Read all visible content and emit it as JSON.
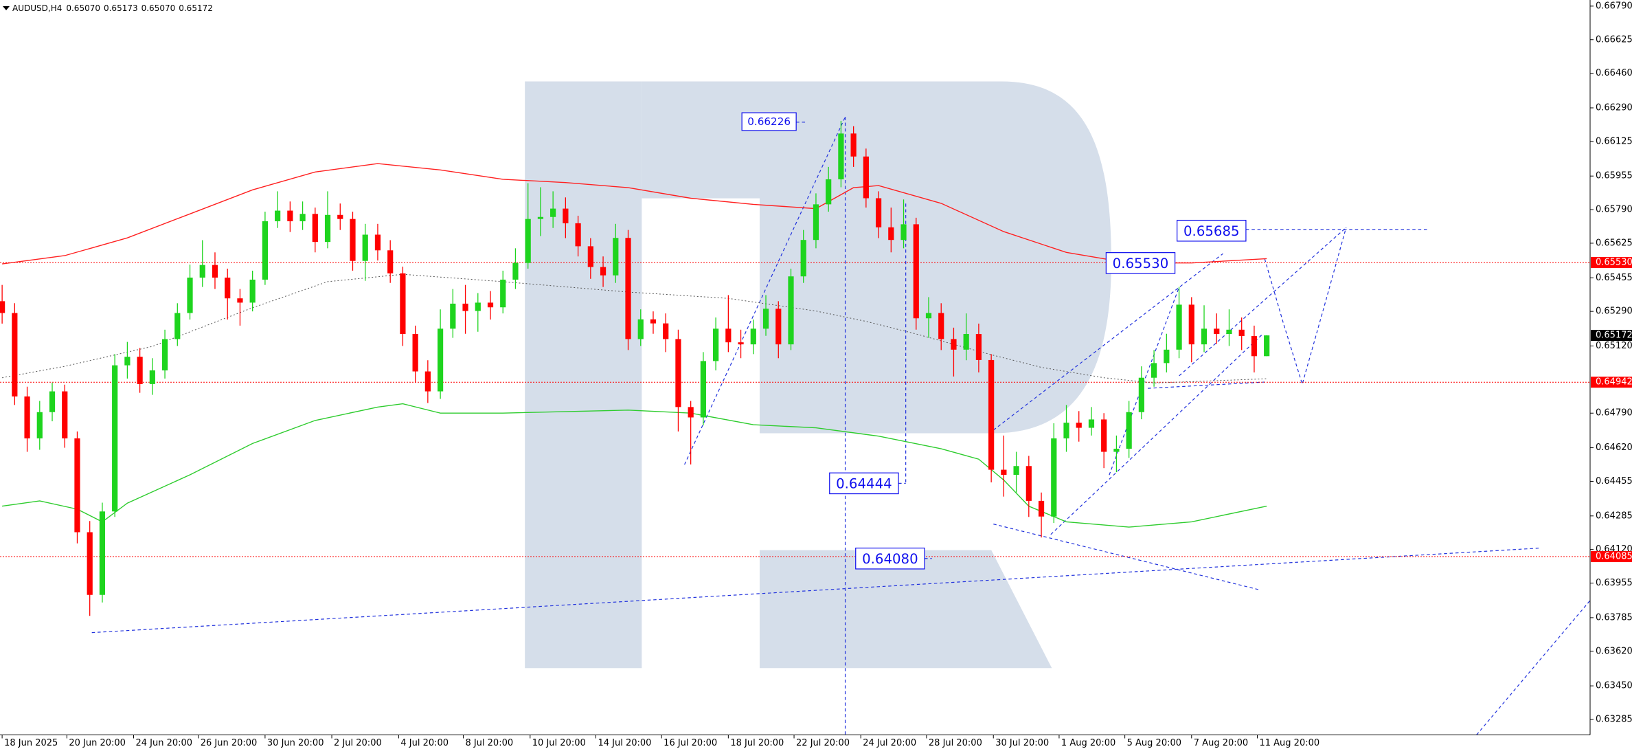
{
  "chart_data": {
    "type": "candlestick",
    "title": "AUDUSD,H4",
    "header_values": [
      "0.65070",
      "0.65173",
      "0.65070",
      "0.65172"
    ],
    "open": [
      0.6534,
      0.65282,
      0.64872,
      0.64666,
      0.64795,
      0.64897,
      0.64666,
      0.64205,
      0.63897,
      0.64307,
      0.65025,
      0.65067,
      0.64933,
      0.65,
      0.65154,
      0.65282,
      0.65456,
      0.65518,
      0.65456,
      0.65354,
      0.65333,
      0.65446,
      0.65733,
      0.65785,
      0.65733,
      0.65769,
      0.65631,
      0.65764,
      0.65744,
      0.65538,
      0.65667,
      0.6559,
      0.65477,
      0.65179,
      0.64995,
      0.64897,
      0.65205,
      0.65328,
      0.65292,
      0.65333,
      0.6531,
      0.65446,
      0.65528,
      0.65744,
      0.65754,
      0.65795,
      0.65723,
      0.6561,
      0.65508,
      0.65467,
      0.65651,
      0.65154,
      0.65251,
      0.65231,
      0.65154,
      0.6482,
      0.64769,
      0.65046,
      0.65205,
      0.65138,
      0.65128,
      0.65205,
      0.65303,
      0.65128,
      0.65462,
      0.65641,
      0.65816,
      0.65939,
      0.66164,
      0.66051,
      0.65846,
      0.65703,
      0.65641,
      0.65718,
      0.65256,
      0.65282,
      0.65154,
      0.65102,
      0.65179,
      0.65051,
      0.64512,
      0.64487,
      0.6453,
      0.64359,
      0.64282,
      0.64666,
      0.64743,
      0.64718,
      0.64759,
      0.646,
      0.64615,
      0.64795,
      0.64964,
      0.65036,
      0.65102,
      0.65323,
      0.65128,
      0.65205,
      0.65179,
      0.652,
      0.65169,
      0.6507
    ],
    "high": [
      0.6542,
      0.6533,
      0.6492,
      0.6485,
      0.6494,
      0.6493,
      0.647,
      0.6426,
      0.6435,
      0.6508,
      0.6514,
      0.6511,
      0.6506,
      0.652,
      0.6533,
      0.6552,
      0.6564,
      0.6558,
      0.655,
      0.654,
      0.6549,
      0.6578,
      0.6588,
      0.6583,
      0.6583,
      0.658,
      0.6588,
      0.6582,
      0.6578,
      0.6572,
      0.6572,
      0.6564,
      0.6551,
      0.6522,
      0.6505,
      0.653,
      0.654,
      0.6542,
      0.6538,
      0.6539,
      0.6549,
      0.656,
      0.6592,
      0.659,
      0.6588,
      0.6585,
      0.6576,
      0.6565,
      0.6556,
      0.6572,
      0.6569,
      0.653,
      0.6529,
      0.6528,
      0.652,
      0.6485,
      0.6509,
      0.6526,
      0.6537,
      0.652,
      0.6525,
      0.6537,
      0.6534,
      0.655,
      0.6569,
      0.6587,
      0.66,
      0.66226,
      0.662,
      0.6609,
      0.6588,
      0.658,
      0.6584,
      0.6575,
      0.6536,
      0.6533,
      0.6521,
      0.6528,
      0.6523,
      0.6508,
      0.6468,
      0.646,
      0.6458,
      0.644,
      0.6474,
      0.6483,
      0.648,
      0.6482,
      0.6479,
      0.6468,
      0.6485,
      0.6502,
      0.651,
      0.6518,
      0.6541,
      0.6536,
      0.6532,
      0.6528,
      0.653,
      0.6526,
      0.6522,
      0.65173
    ],
    "low": [
      0.6523,
      0.6483,
      0.646,
      0.6461,
      0.6475,
      0.6462,
      0.6415,
      0.63794,
      0.6386,
      0.6428,
      0.6496,
      0.6489,
      0.6488,
      0.6496,
      0.6512,
      0.6525,
      0.6541,
      0.654,
      0.6525,
      0.6522,
      0.6529,
      0.6542,
      0.657,
      0.6568,
      0.6569,
      0.6558,
      0.656,
      0.6569,
      0.6549,
      0.6544,
      0.6554,
      0.6543,
      0.6512,
      0.6494,
      0.6484,
      0.6486,
      0.6516,
      0.6518,
      0.6519,
      0.6525,
      0.6528,
      0.654,
      0.655,
      0.6566,
      0.657,
      0.6565,
      0.6556,
      0.6545,
      0.6541,
      0.6543,
      0.651,
      0.6512,
      0.6518,
      0.6509,
      0.647,
      0.64538,
      0.6473,
      0.65,
      0.6509,
      0.6506,
      0.6508,
      0.6517,
      0.6506,
      0.651,
      0.6543,
      0.656,
      0.6578,
      0.659,
      0.66,
      0.658,
      0.6565,
      0.6558,
      0.656,
      0.652,
      0.6516,
      0.651,
      0.6497,
      0.6505,
      0.6499,
      0.6445,
      0.6438,
      0.644,
      0.6428,
      0.64179,
      0.6425,
      0.646,
      0.6465,
      0.6468,
      0.6452,
      0.645,
      0.6457,
      0.6476,
      0.6492,
      0.6499,
      0.6506,
      0.6504,
      0.6509,
      0.6513,
      0.6512,
      0.651,
      0.6499,
      0.6507
    ],
    "close": [
      0.65282,
      0.64872,
      0.64666,
      0.64795,
      0.64897,
      0.64666,
      0.64205,
      0.63897,
      0.64307,
      0.65025,
      0.65067,
      0.64933,
      0.65,
      0.65154,
      0.65282,
      0.65456,
      0.65518,
      0.65456,
      0.65354,
      0.65333,
      0.65446,
      0.65733,
      0.65785,
      0.65733,
      0.65769,
      0.65631,
      0.65764,
      0.65744,
      0.65538,
      0.65667,
      0.6559,
      0.65477,
      0.65179,
      0.64995,
      0.64897,
      0.65205,
      0.65328,
      0.65292,
      0.65333,
      0.6531,
      0.65446,
      0.65528,
      0.65744,
      0.65754,
      0.65795,
      0.65723,
      0.6561,
      0.65508,
      0.65467,
      0.65651,
      0.65154,
      0.65251,
      0.65231,
      0.65154,
      0.6482,
      0.64769,
      0.65046,
      0.65205,
      0.65138,
      0.65128,
      0.65205,
      0.65303,
      0.65128,
      0.65462,
      0.65641,
      0.65816,
      0.65939,
      0.66164,
      0.66051,
      0.65846,
      0.65703,
      0.65641,
      0.65718,
      0.65256,
      0.65282,
      0.65154,
      0.65102,
      0.65179,
      0.65051,
      0.64512,
      0.64487,
      0.6453,
      0.64359,
      0.64282,
      0.64666,
      0.64743,
      0.64718,
      0.64759,
      0.646,
      0.64615,
      0.64795,
      0.64964,
      0.65036,
      0.65102,
      0.65323,
      0.65128,
      0.65205,
      0.65179,
      0.652,
      0.65169,
      0.6507,
      0.65172
    ],
    "up_color": "#1ed41e",
    "down_color": "#ff0000",
    "xlim": [
      -0.17,
      126.83
    ],
    "xticks": [
      {
        "value": 0,
        "label": "18 Jun 2025"
      },
      {
        "value": 5.17,
        "label": "20 Jun 20:00"
      },
      {
        "value": 10.5,
        "label": "24 Jun 20:00"
      },
      {
        "value": 15.67,
        "label": "26 Jun 20:00"
      },
      {
        "value": 21,
        "label": "30 Jun 20:00"
      },
      {
        "value": 26.33,
        "label": "2 Jul 20:00"
      },
      {
        "value": 31.67,
        "label": "4 Jul 20:00"
      },
      {
        "value": 36.83,
        "label": "8 Jul 20:00"
      },
      {
        "value": 42.17,
        "label": "10 Jul 20:00"
      },
      {
        "value": 47.42,
        "label": "14 Jul 20:00"
      },
      {
        "value": 52.67,
        "label": "16 Jul 20:00"
      },
      {
        "value": 58,
        "label": "18 Jul 20:00"
      },
      {
        "value": 63.25,
        "label": "22 Jul 20:00"
      },
      {
        "value": 68.58,
        "label": "24 Jul 20:00"
      },
      {
        "value": 73.83,
        "label": "28 Jul 20:00"
      },
      {
        "value": 79.17,
        "label": "30 Jul 20:00"
      },
      {
        "value": 84.42,
        "label": "1 Aug 20:00"
      },
      {
        "value": 89.67,
        "label": "5 Aug 20:00"
      },
      {
        "value": 95,
        "label": "7 Aug 20:00"
      },
      {
        "value": 100.25,
        "label": "11 Aug 20:00"
      }
    ],
    "ylim": [
      0.63209,
      0.6682
    ],
    "yticks": [
      {
        "value": 0.6679,
        "label": "0.66790"
      },
      0.66625,
      {
        "value": 0.6646,
        "label": "0.66460"
      },
      {
        "value": 0.6629,
        "label": "0.66290"
      },
      0.66125,
      0.65955,
      {
        "value": 0.6579,
        "label": "0.65790"
      },
      0.65625,
      0.65455,
      {
        "value": 0.6529,
        "label": "0.65290"
      },
      {
        "value": 0.6512,
        "label": "0.65120"
      },
      {
        "value": 0.6479,
        "label": "0.64790"
      },
      {
        "value": 0.6462,
        "label": "0.64620"
      },
      0.64455,
      0.64285,
      {
        "value": 0.6412,
        "label": "0.64120"
      },
      0.63955,
      0.63785,
      {
        "value": 0.6362,
        "label": "0.63620"
      },
      {
        "value": 0.6345,
        "label": "0.63450"
      },
      0.63285
    ],
    "moving_averages": [
      {
        "color": "#ff2020",
        "style": "solid",
        "x": [
          0,
          5,
          10,
          15,
          20,
          25,
          30,
          35,
          40,
          45,
          50,
          55,
          60,
          65,
          68,
          70,
          75,
          80,
          85,
          90,
          95,
          101
        ],
        "values": [
          0.65523,
          0.65564,
          0.65651,
          0.65769,
          0.65887,
          0.65975,
          0.66016,
          0.65985,
          0.65939,
          0.65923,
          0.65898,
          0.65846,
          0.65816,
          0.65795,
          0.65898,
          0.65908,
          0.65821,
          0.65682,
          0.6558,
          0.65528,
          0.65528,
          0.65549
        ]
      },
      {
        "color": "#2ecc2e",
        "style": "solid",
        "x": [
          0,
          3,
          6,
          8,
          10,
          15,
          20,
          25,
          30,
          32,
          35,
          40,
          50,
          55,
          60,
          65,
          70,
          75,
          78,
          80,
          82,
          85,
          90,
          95,
          101
        ],
        "values": [
          0.64333,
          0.64359,
          0.64318,
          0.64256,
          0.64348,
          0.64487,
          0.64641,
          0.64754,
          0.6482,
          0.64836,
          0.6479,
          0.6479,
          0.64805,
          0.6479,
          0.64733,
          0.64718,
          0.64677,
          0.64615,
          0.64564,
          0.64461,
          0.64333,
          0.64256,
          0.6423,
          0.64256,
          0.64333
        ]
      },
      {
        "color": "#555555",
        "style": "dotted",
        "x": [
          0,
          5,
          12,
          20,
          26,
          32,
          40,
          50,
          58,
          65,
          69,
          73,
          79,
          83,
          88,
          92,
          101
        ],
        "values": [
          0.64964,
          0.6502,
          0.65118,
          0.65308,
          0.65436,
          0.65472,
          0.65436,
          0.65385,
          0.65354,
          0.65292,
          0.65241,
          0.65179,
          0.65077,
          0.65015,
          0.64964,
          0.64938,
          0.64959
        ]
      }
    ],
    "levels": [
      {
        "value": 0.6553,
        "label": "0.65530",
        "color": "#ff0000"
      },
      {
        "value": 0.64942,
        "label": "0.64942",
        "color": "#ff0000"
      },
      {
        "value": 0.64085,
        "label": "0.64085",
        "color": "#ff0000"
      }
    ],
    "last_price": {
      "value": 0.65172,
      "label": "0.65172",
      "color": "#000000"
    },
    "annotations": [
      "0.66226",
      "0.65685",
      "0.65530",
      "0.64444",
      "0.64080"
    ]
  }
}
